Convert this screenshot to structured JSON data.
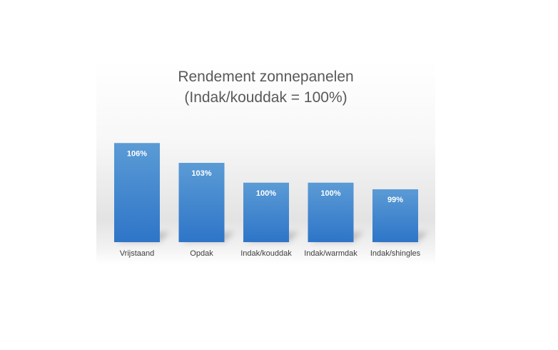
{
  "chart_data": {
    "type": "bar",
    "title": "Rendement zonnepanelen",
    "subtitle": "(Indak/kouddak = 100%)",
    "categories": [
      "Vrijstaand",
      "Opdak",
      "Indak/kouddak",
      "Indak/warmdak",
      "Indak/shingles"
    ],
    "values": [
      106,
      103,
      100,
      100,
      99
    ],
    "data_labels": [
      "106%",
      "103%",
      "100%",
      "100%",
      "99%"
    ],
    "unit": "%",
    "xlabel": "",
    "ylabel": "",
    "ylim": [
      91,
      107
    ],
    "grid": false,
    "legend": "none",
    "colors": {
      "bar_top": "#5b9bd5",
      "bar_bottom": "#2e75c8",
      "bar_label": "#ffffff",
      "category_label": "#404040",
      "title": "#595959"
    }
  }
}
